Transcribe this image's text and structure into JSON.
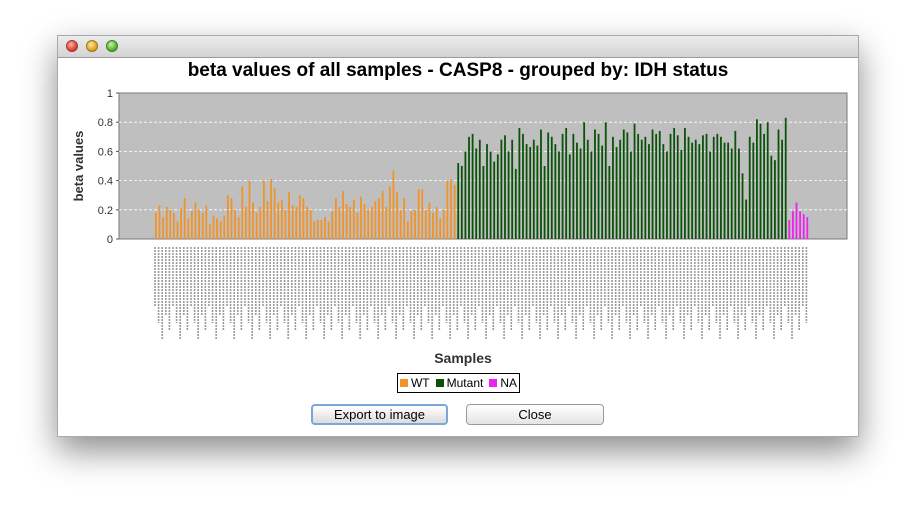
{
  "window": {
    "controls": [
      "close",
      "minimize",
      "zoom"
    ]
  },
  "chart_data": {
    "type": "bar",
    "title": "beta values of all samples - CASP8 - grouped by: IDH status",
    "xlabel": "Samples",
    "ylabel": "beta values",
    "ylim": [
      0,
      1
    ],
    "yticks": [
      0,
      0.2,
      0.4,
      0.6,
      0.8,
      1
    ],
    "yticklabels": [
      "0",
      "0.2",
      "0.4",
      "0.6",
      "0.8",
      "1"
    ],
    "grid": true,
    "legend_position": "bottom",
    "series": [
      {
        "name": "WT",
        "color": "#f0932b",
        "values": [
          0.18,
          0.23,
          0.15,
          0.22,
          0.2,
          0.18,
          0.12,
          0.21,
          0.28,
          0.14,
          0.19,
          0.25,
          0.2,
          0.18,
          0.23,
          0.1,
          0.16,
          0.14,
          0.12,
          0.16,
          0.3,
          0.28,
          0.2,
          0.15,
          0.36,
          0.22,
          0.4,
          0.25,
          0.18,
          0.22,
          0.4,
          0.26,
          0.41,
          0.35,
          0.25,
          0.27,
          0.2,
          0.32,
          0.23,
          0.22,
          0.3,
          0.28,
          0.22,
          0.2,
          0.12,
          0.13,
          0.13,
          0.15,
          0.12,
          0.19,
          0.28,
          0.22,
          0.33,
          0.24,
          0.22,
          0.27,
          0.18,
          0.29,
          0.24,
          0.2,
          0.22,
          0.26,
          0.28,
          0.33,
          0.22,
          0.36,
          0.47,
          0.32,
          0.2,
          0.28,
          0.12,
          0.19,
          0.2,
          0.34,
          0.34,
          0.2,
          0.25,
          0.18,
          0.22,
          0.14,
          0.2,
          0.4,
          0.41,
          0.37
        ]
      },
      {
        "name": "Mutant",
        "color": "#0a520a",
        "values": [
          0.52,
          0.5,
          0.6,
          0.7,
          0.72,
          0.62,
          0.68,
          0.5,
          0.65,
          0.6,
          0.53,
          0.58,
          0.68,
          0.71,
          0.6,
          0.68,
          0.48,
          0.76,
          0.72,
          0.65,
          0.63,
          0.68,
          0.64,
          0.75,
          0.5,
          0.73,
          0.7,
          0.65,
          0.6,
          0.72,
          0.76,
          0.58,
          0.72,
          0.66,
          0.62,
          0.8,
          0.68,
          0.6,
          0.75,
          0.72,
          0.64,
          0.8,
          0.5,
          0.7,
          0.63,
          0.68,
          0.75,
          0.73,
          0.6,
          0.79,
          0.72,
          0.68,
          0.7,
          0.65,
          0.75,
          0.72,
          0.74,
          0.65,
          0.6,
          0.72,
          0.76,
          0.71,
          0.61,
          0.76,
          0.7,
          0.66,
          0.68,
          0.65,
          0.71,
          0.72,
          0.6,
          0.7,
          0.72,
          0.7,
          0.66,
          0.66,
          0.62,
          0.74,
          0.62,
          0.45,
          0.27,
          0.7,
          0.66,
          0.82,
          0.79,
          0.72,
          0.8,
          0.57,
          0.54,
          0.75,
          0.68,
          0.83
        ]
      },
      {
        "name": "NA",
        "color": "#ee22ee",
        "values": [
          0.13,
          0.19,
          0.25,
          0.19,
          0.17,
          0.15
        ]
      }
    ]
  },
  "buttons": {
    "export": "Export to image",
    "close": "Close"
  }
}
